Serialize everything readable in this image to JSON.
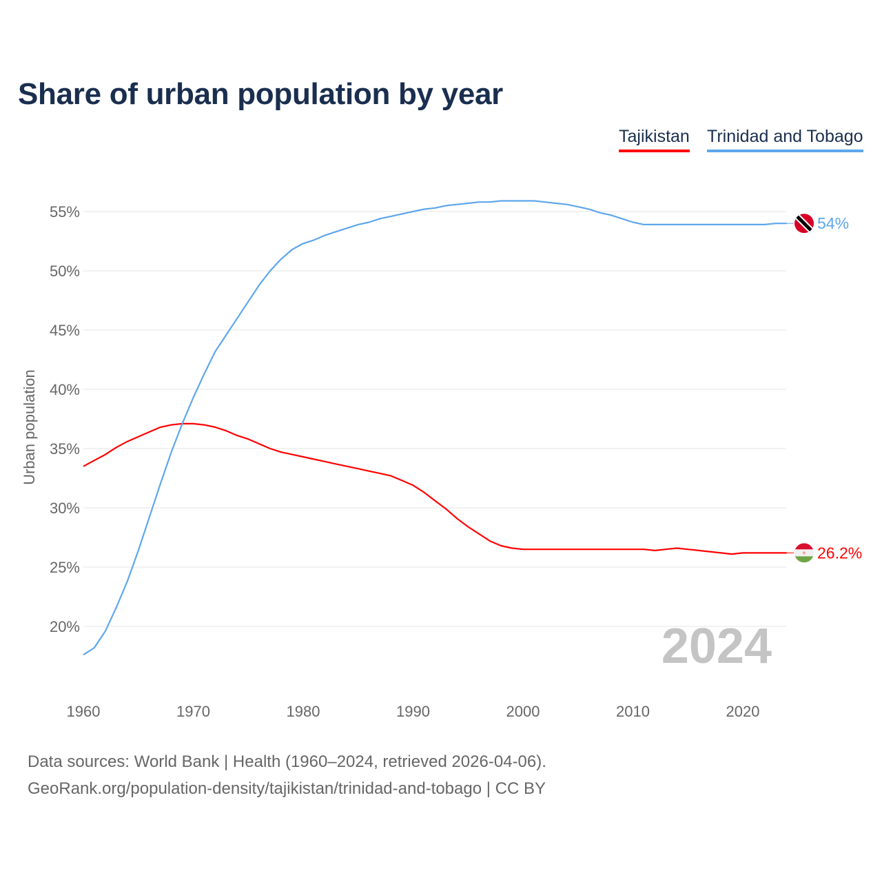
{
  "title": "Share of urban population by year",
  "legend": [
    {
      "name": "Tajikistan",
      "color": "#ff0000"
    },
    {
      "name": "Trinidad and Tobago",
      "color": "#5ea6ec"
    }
  ],
  "year_watermark": "2024",
  "footer": {
    "line1": "Data sources: World Bank | Health (1960–2024, retrieved 2026-04-06).",
    "line2": "GeoRank.org/population-density/tajikistan/trinidad-and-tobago | CC BY"
  },
  "chart_data": {
    "type": "line",
    "title": "Share of urban population by year",
    "xlabel": "",
    "ylabel": "Urban population",
    "xlim": [
      1960,
      2024
    ],
    "ylim": [
      15,
      57
    ],
    "yticks": [
      20,
      25,
      30,
      35,
      40,
      45,
      50,
      55
    ],
    "ytick_labels": [
      "20%",
      "25%",
      "30%",
      "35%",
      "40%",
      "45%",
      "50%",
      "55%"
    ],
    "xticks": [
      1960,
      1970,
      1980,
      1990,
      2000,
      2010,
      2020
    ],
    "xtick_labels": [
      "1960",
      "1970",
      "1980",
      "1990",
      "2000",
      "2010",
      "2020"
    ],
    "grid": true,
    "legend_position": "top-right",
    "x_start": 1960,
    "series": [
      {
        "name": "Tajikistan",
        "color": "#ff0000",
        "end_label": "26.2%",
        "values": [
          33.5,
          34.0,
          34.5,
          35.1,
          35.6,
          36.0,
          36.4,
          36.8,
          37.0,
          37.1,
          37.1,
          37.0,
          36.8,
          36.5,
          36.1,
          35.8,
          35.4,
          35.0,
          34.7,
          34.5,
          34.3,
          34.1,
          33.9,
          33.7,
          33.5,
          33.3,
          33.1,
          32.9,
          32.7,
          32.3,
          31.9,
          31.3,
          30.6,
          29.9,
          29.1,
          28.4,
          27.8,
          27.2,
          26.8,
          26.6,
          26.5,
          26.5,
          26.5,
          26.5,
          26.5,
          26.5,
          26.5,
          26.5,
          26.5,
          26.5,
          26.5,
          26.5,
          26.4,
          26.5,
          26.6,
          26.5,
          26.4,
          26.3,
          26.2,
          26.1,
          26.2,
          26.2,
          26.2,
          26.2,
          26.2
        ]
      },
      {
        "name": "Trinidad and Tobago",
        "color": "#5ea6ec",
        "end_label": "54%",
        "values": [
          17.6,
          18.2,
          19.6,
          21.6,
          23.8,
          26.4,
          29.2,
          32.0,
          34.7,
          37.1,
          39.3,
          41.3,
          43.2,
          44.6,
          46.0,
          47.4,
          48.8,
          50.0,
          51.0,
          51.8,
          52.3,
          52.6,
          53.0,
          53.3,
          53.6,
          53.9,
          54.1,
          54.4,
          54.6,
          54.8,
          55.0,
          55.2,
          55.3,
          55.5,
          55.6,
          55.7,
          55.8,
          55.8,
          55.9,
          55.9,
          55.9,
          55.9,
          55.8,
          55.7,
          55.6,
          55.4,
          55.2,
          54.9,
          54.7,
          54.4,
          54.1,
          53.9,
          53.9,
          53.9,
          53.9,
          53.9,
          53.9,
          53.9,
          53.9,
          53.9,
          53.9,
          53.9,
          53.9,
          54.0,
          54.0
        ]
      }
    ]
  }
}
